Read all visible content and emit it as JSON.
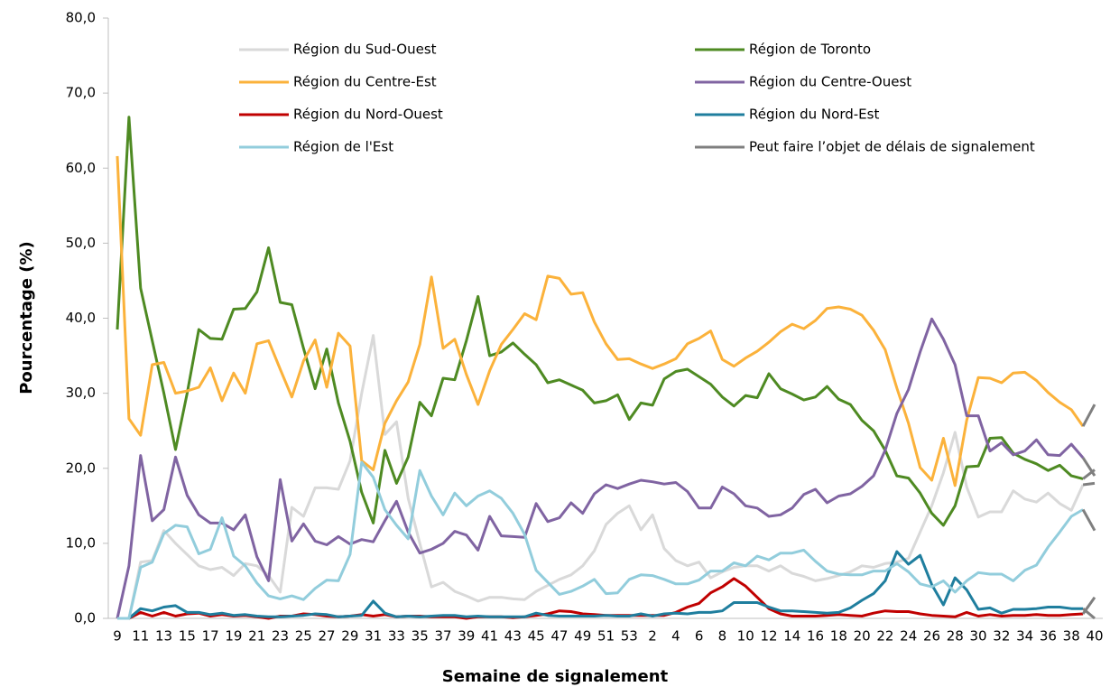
{
  "chart_data": {
    "type": "line",
    "y_label": "Pourcentage (%)",
    "x_label": "Semaine de signalement",
    "categories": [
      "9",
      null,
      "11",
      null,
      "13",
      null,
      "15",
      null,
      "17",
      null,
      "19",
      null,
      "21",
      null,
      "23",
      null,
      "25",
      null,
      "27",
      null,
      "29",
      null,
      "31",
      null,
      "33",
      null,
      "35",
      null,
      "37",
      null,
      "39",
      null,
      "41",
      null,
      "43",
      null,
      "45",
      null,
      "47",
      null,
      "49",
      null,
      "51",
      null,
      "53",
      null,
      "2",
      null,
      "4",
      null,
      "6",
      null,
      "8",
      null,
      "10",
      null,
      "12",
      null,
      "14",
      null,
      "16",
      null,
      "18",
      null,
      "20",
      null,
      "22",
      null,
      "24",
      null,
      "26",
      null,
      "28",
      null,
      "30",
      null,
      "32",
      null,
      "34",
      null,
      "36",
      null,
      "38",
      null,
      "40"
    ],
    "ylim": [
      0,
      80
    ],
    "yticks": [
      {
        "value": 0,
        "label": "0,0"
      },
      {
        "value": 10,
        "label": "10,0"
      },
      {
        "value": 20,
        "label": "20,0"
      },
      {
        "value": 30,
        "label": "30,0"
      },
      {
        "value": 40,
        "label": "40,0"
      },
      {
        "value": 50,
        "label": "50,0"
      },
      {
        "value": 60,
        "label": "60,0"
      },
      {
        "value": 70,
        "label": "70,0"
      },
      {
        "value": 80,
        "label": "80,0"
      }
    ],
    "delayed_last_weeks": 1,
    "delay_legend": {
      "name": "Peut faire l’objet de délais de signalement",
      "color": "#7f7f7f"
    },
    "series": [
      {
        "name": "Région du Sud-Ouest",
        "color": "#d9d9d9",
        "values": [
          0,
          0,
          7.5,
          7.7,
          11.7,
          10,
          8.5,
          7,
          6.5,
          6.8,
          5.7,
          7.3,
          7,
          5.7,
          3.5,
          14.8,
          13.6,
          17.4,
          17.4,
          17.2,
          21,
          30,
          37.7,
          24.5,
          26.2,
          16,
          10,
          4.2,
          4.8,
          3.6,
          3,
          2.3,
          2.8,
          2.8,
          2.6,
          2.5,
          3.6,
          4.4,
          5.2,
          5.8,
          7,
          9,
          12.5,
          14,
          15,
          11.8,
          13.8,
          9.3,
          7.7,
          7,
          7.5,
          5.4,
          6.2,
          6.8,
          7,
          7,
          6.3,
          7,
          6,
          5.6,
          5,
          5.3,
          5.7,
          6.2,
          7,
          6.8,
          7.3,
          7.5,
          8,
          11.5,
          15,
          19.4,
          24.8,
          17.5,
          13.5,
          14.2,
          14.2,
          17,
          15.9,
          15.5,
          16.7,
          15.3,
          14.4,
          17.8,
          18
        ]
      },
      {
        "name": "Région de Toronto",
        "color": "#4e8a22",
        "values": [
          38.5,
          66.8,
          44,
          37,
          30,
          22.5,
          30,
          38.5,
          37.3,
          37.2,
          41.2,
          41.3,
          43.5,
          49.4,
          42.1,
          41.8,
          36,
          30.6,
          35.9,
          28.7,
          23.6,
          16.8,
          12.7,
          22.4,
          18,
          21.5,
          28.8,
          27,
          32,
          31.8,
          37,
          42.9,
          35,
          35.5,
          36.7,
          35.2,
          33.8,
          31.4,
          31.8,
          31.1,
          30.4,
          28.7,
          29,
          29.8,
          26.5,
          28.7,
          28.4,
          31.9,
          32.9,
          33.2,
          32.2,
          31.2,
          29.5,
          28.3,
          29.7,
          29.4,
          32.6,
          30.6,
          29.9,
          29.1,
          29.5,
          30.9,
          29.2,
          28.5,
          26.4,
          25,
          22.4,
          19,
          18.7,
          16.7,
          14,
          12.4,
          15,
          20.2,
          20.3,
          24,
          24.1,
          22,
          21.2,
          20.6,
          19.7,
          20.4,
          19,
          18.6,
          19.8
        ]
      },
      {
        "name": "Région du Centre-Est",
        "color": "#fbb23b",
        "values": [
          61.6,
          26.6,
          24.4,
          33.8,
          34.1,
          30,
          30.3,
          30.8,
          33.4,
          29,
          32.7,
          30,
          36.6,
          37,
          33.2,
          29.5,
          34.3,
          37.1,
          30.8,
          38,
          36.3,
          21,
          19.8,
          26,
          29,
          31.5,
          36.5,
          45.5,
          36,
          37.2,
          32.5,
          28.5,
          33,
          36.5,
          38.5,
          40.6,
          39.8,
          45.6,
          45.3,
          43.2,
          43.4,
          39.5,
          36.6,
          34.5,
          34.6,
          33.9,
          33.3,
          33.9,
          34.6,
          36.6,
          37.3,
          38.3,
          34.5,
          33.6,
          34.7,
          35.6,
          36.8,
          38.2,
          39.2,
          38.6,
          39.7,
          41.3,
          41.5,
          41.2,
          40.4,
          38.4,
          35.8,
          30.7,
          26,
          20.1,
          18.4,
          24,
          17.7,
          26.4,
          32.1,
          32,
          31.4,
          32.7,
          32.8,
          31.7,
          30.1,
          28.8,
          27.8,
          25.6,
          28.5
        ]
      },
      {
        "name": "Région du Centre-Ouest",
        "color": "#8064a2",
        "values": [
          0,
          7,
          21.7,
          13,
          14.5,
          21.5,
          16.4,
          13.8,
          12.7,
          12.7,
          11.8,
          13.8,
          8.2,
          5,
          18.5,
          10.3,
          12.6,
          10.3,
          9.8,
          10.9,
          9.9,
          10.5,
          10.2,
          13,
          15.6,
          11.5,
          8.7,
          9.2,
          10,
          11.6,
          11.1,
          9.1,
          13.6,
          11,
          10.9,
          10.8,
          15.3,
          12.9,
          13.4,
          15.4,
          14,
          16.6,
          17.8,
          17.3,
          17.9,
          18.4,
          18.2,
          17.9,
          18.1,
          16.9,
          14.7,
          14.7,
          17.5,
          16.6,
          15,
          14.7,
          13.6,
          13.8,
          14.7,
          16.5,
          17.2,
          15.4,
          16.3,
          16.6,
          17.6,
          19,
          22.4,
          27.3,
          30.5,
          35.5,
          39.9,
          37.2,
          33.8,
          27,
          27,
          22.3,
          23.4,
          21.8,
          22.3,
          23.8,
          21.8,
          21.7,
          23.2,
          21.4,
          19
        ]
      },
      {
        "name": "Région du Nord-Ouest",
        "color": "#c00000",
        "values": [
          0,
          0,
          0.8,
          0.3,
          0.8,
          0.3,
          0.6,
          0.7,
          0.3,
          0.5,
          0.3,
          0.4,
          0.2,
          0,
          0.3,
          0.3,
          0.6,
          0.5,
          0.3,
          0.2,
          0.3,
          0.5,
          0.3,
          0.5,
          0.2,
          0.3,
          0.3,
          0.2,
          0.2,
          0.2,
          0,
          0.2,
          0.2,
          0.2,
          0.1,
          0.2,
          0.4,
          0.6,
          1,
          0.9,
          0.6,
          0.5,
          0.4,
          0.4,
          0.4,
          0.4,
          0.4,
          0.4,
          0.8,
          1.5,
          2,
          3.4,
          4.2,
          5.3,
          4.3,
          2.8,
          1.3,
          0.6,
          0.3,
          0.3,
          0.3,
          0.4,
          0.5,
          0.4,
          0.3,
          0.7,
          1,
          0.9,
          0.9,
          0.6,
          0.4,
          0.3,
          0.2,
          0.8,
          0.3,
          0.5,
          0.3,
          0.4,
          0.4,
          0.5,
          0.4,
          0.4,
          0.5,
          0.6,
          2.8
        ]
      },
      {
        "name": "Région du Nord-Est",
        "color": "#1f7e9e",
        "values": [
          0,
          0,
          1.3,
          1,
          1.5,
          1.7,
          0.8,
          0.8,
          0.5,
          0.7,
          0.4,
          0.5,
          0.3,
          0.2,
          0.2,
          0.3,
          0.4,
          0.6,
          0.5,
          0.2,
          0.3,
          0.4,
          2.3,
          0.7,
          0.2,
          0.3,
          0.2,
          0.3,
          0.4,
          0.4,
          0.2,
          0.3,
          0.2,
          0.2,
          0.2,
          0.2,
          0.7,
          0.4,
          0.3,
          0.3,
          0.3,
          0.3,
          0.4,
          0.3,
          0.3,
          0.6,
          0.3,
          0.6,
          0.7,
          0.6,
          0.8,
          0.8,
          1,
          2.1,
          2.1,
          2.1,
          1.5,
          1,
          1,
          0.9,
          0.8,
          0.7,
          0.8,
          1.4,
          2.4,
          3.3,
          5,
          8.9,
          7.2,
          8.4,
          4.5,
          1.8,
          5.4,
          3.8,
          1.2,
          1.4,
          0.7,
          1.2,
          1.2,
          1.3,
          1.5,
          1.5,
          1.3,
          1.3,
          0
        ]
      },
      {
        "name": "Région de l'Est",
        "color": "#92cddc",
        "values": [
          0,
          0,
          6.8,
          7.5,
          11.3,
          12.4,
          12.2,
          8.6,
          9.2,
          13.4,
          8.3,
          7,
          4.7,
          3,
          2.6,
          3,
          2.5,
          4,
          5.1,
          5,
          8.5,
          20.8,
          18.8,
          14.5,
          12.4,
          10.6,
          19.7,
          16.3,
          13.8,
          16.7,
          15,
          16.3,
          17,
          16,
          14,
          11.2,
          6.4,
          4.8,
          3.2,
          3.6,
          4.3,
          5.2,
          3.3,
          3.4,
          5.2,
          5.8,
          5.7,
          5.2,
          4.6,
          4.6,
          5.1,
          6.3,
          6.3,
          7.4,
          7,
          8.3,
          7.8,
          8.7,
          8.7,
          9.1,
          7.6,
          6.3,
          5.9,
          5.8,
          5.8,
          6.3,
          6.3,
          7.3,
          6.2,
          4.6,
          4.2,
          5,
          3.5,
          5,
          6.1,
          5.9,
          5.9,
          5,
          6.4,
          7.1,
          9.5,
          11.5,
          13.6,
          14.5,
          11.7
        ]
      }
    ]
  }
}
